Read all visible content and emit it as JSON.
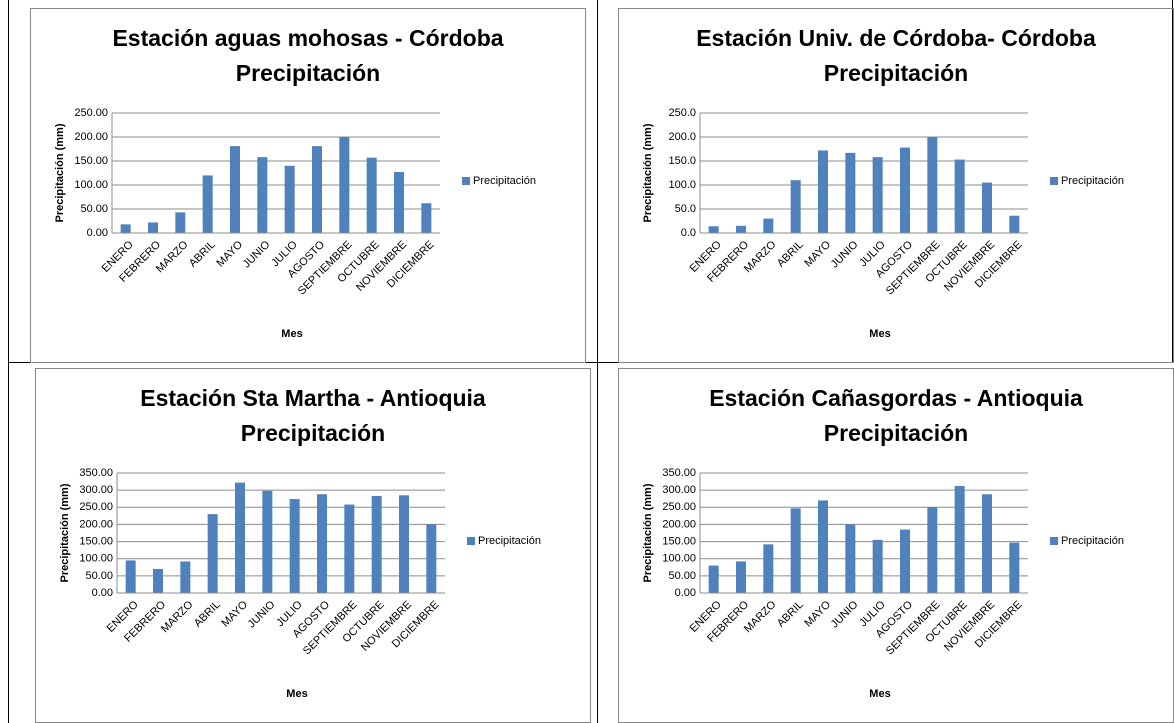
{
  "chart_data": [
    {
      "type": "bar",
      "title": "Estación aguas mohosas - Córdoba",
      "subtitle": "Precipitación",
      "xlabel": "Mes",
      "ylabel": "Precipitación (mm)",
      "categories": [
        "ENERO",
        "FEBRERO",
        "MARZO",
        "ABRIL",
        "MAYO",
        "JUNIO",
        "JULIO",
        "AGOSTO",
        "SEPTIEMBRE",
        "OCTUBRE",
        "NOVIEMBRE",
        "DICIEMBRE"
      ],
      "series": [
        {
          "name": "Precipitación",
          "color": "#4f81bd",
          "values": [
            18,
            22,
            43,
            120,
            181,
            158,
            140,
            181,
            200,
            157,
            127,
            62
          ]
        }
      ],
      "ylim": [
        0,
        250
      ],
      "yticks": [
        {
          "value": 0,
          "label": "0.00"
        },
        {
          "value": 50,
          "label": "50.00"
        },
        {
          "value": 100,
          "label": "100.00"
        },
        {
          "value": 150,
          "label": "150.00"
        },
        {
          "value": 200,
          "label": "200.00"
        },
        {
          "value": 250,
          "label": "250.00"
        }
      ],
      "grid": true,
      "legend": "right"
    },
    {
      "type": "bar",
      "title": "Estación Univ. de Córdoba- Córdoba",
      "subtitle": "Precipitación",
      "xlabel": "Mes",
      "ylabel": "Precipitación (mm)",
      "categories": [
        "ENERO",
        "FEBRERO",
        "MARZO",
        "ABRIL",
        "MAYO",
        "JUNIO",
        "JULIO",
        "AGOSTO",
        "SEPTIEMBRE",
        "OCTUBRE",
        "NOVIEMBRE",
        "DICIEMBRE"
      ],
      "series": [
        {
          "name": "Precipitación",
          "color": "#4f81bd",
          "values": [
            14,
            15,
            30,
            110,
            172,
            167,
            158,
            178,
            200,
            153,
            105,
            36
          ]
        }
      ],
      "ylim": [
        0,
        250
      ],
      "yticks": [
        {
          "value": 0,
          "label": "0.0"
        },
        {
          "value": 50,
          "label": "50.0"
        },
        {
          "value": 100,
          "label": "100.0"
        },
        {
          "value": 150,
          "label": "150.0"
        },
        {
          "value": 200,
          "label": "200.0"
        },
        {
          "value": 250,
          "label": "250.0"
        }
      ],
      "grid": true,
      "legend": "right"
    },
    {
      "type": "bar",
      "title": "Estación Sta Martha - Antioquia",
      "subtitle": "Precipitación",
      "xlabel": "Mes",
      "ylabel": "Precipitación (mm)",
      "categories": [
        "ENERO",
        "FEBRERO",
        "MARZO",
        "ABRIL",
        "MAYO",
        "JUNIO",
        "JULIO",
        "AGOSTO",
        "SEPTIEMBRE",
        "OCTUBRE",
        "NOVIEMBRE",
        "DICIEMBRE"
      ],
      "series": [
        {
          "name": "Precipitación",
          "color": "#4f81bd",
          "values": [
            95,
            70,
            92,
            230,
            322,
            298,
            274,
            288,
            258,
            283,
            285,
            200
          ]
        }
      ],
      "ylim": [
        0,
        350
      ],
      "yticks": [
        {
          "value": 0,
          "label": "0.00"
        },
        {
          "value": 50,
          "label": "50.00"
        },
        {
          "value": 100,
          "label": "100.00"
        },
        {
          "value": 150,
          "label": "150.00"
        },
        {
          "value": 200,
          "label": "200.00"
        },
        {
          "value": 250,
          "label": "250.00"
        },
        {
          "value": 300,
          "label": "300.00"
        },
        {
          "value": 350,
          "label": "350.00"
        }
      ],
      "grid": true,
      "legend": "right"
    },
    {
      "type": "bar",
      "title": "Estación Cañasgordas - Antioquia",
      "subtitle": "Precipitación",
      "xlabel": "Mes",
      "ylabel": "Precipitación (mm)",
      "categories": [
        "ENERO",
        "FEBRERO",
        "MARZO",
        "ABRIL",
        "MAYO",
        "JUNIO",
        "JULIO",
        "AGOSTO",
        "SEPTIEMBRE",
        "OCTUBRE",
        "NOVIEMBRE",
        "DICIEMBRE"
      ],
      "series": [
        {
          "name": "Precipitación",
          "color": "#4f81bd",
          "values": [
            80,
            92,
            142,
            247,
            270,
            200,
            155,
            185,
            250,
            312,
            288,
            147
          ]
        }
      ],
      "ylim": [
        0,
        350
      ],
      "yticks": [
        {
          "value": 0,
          "label": "0.00"
        },
        {
          "value": 50,
          "label": "50.00"
        },
        {
          "value": 100,
          "label": "100.00"
        },
        {
          "value": 150,
          "label": "150.00"
        },
        {
          "value": 200,
          "label": "200.00"
        },
        {
          "value": 250,
          "label": "250.00"
        },
        {
          "value": 300,
          "label": "300.00"
        },
        {
          "value": 350,
          "label": "350.00"
        }
      ],
      "grid": true,
      "legend": "right"
    }
  ]
}
